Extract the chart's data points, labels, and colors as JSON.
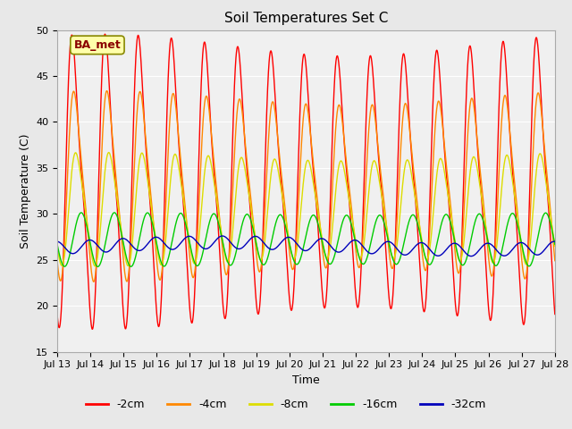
{
  "title": "Soil Temperatures Set C",
  "xlabel": "Time",
  "ylabel": "Soil Temperature (C)",
  "ylim": [
    15,
    50
  ],
  "n_days": 15,
  "x_tick_labels": [
    "Jul 13",
    "Jul 14",
    "Jul 15",
    "Jul 16",
    "Jul 17",
    "Jul 18",
    "Jul 19",
    "Jul 20",
    "Jul 21",
    "Jul 22",
    "Jul 23",
    "Jul 24",
    "Jul 25",
    "Jul 26",
    "Jul 27",
    "Jul 28"
  ],
  "background_color": "#e8e8e8",
  "plot_bg_color": "#f0f0f0",
  "grid_color": "#ffffff",
  "series": [
    {
      "label": "-2cm",
      "color": "#ff0000"
    },
    {
      "label": "-4cm",
      "color": "#ff8800"
    },
    {
      "label": "-8cm",
      "color": "#dddd00"
    },
    {
      "label": "-16cm",
      "color": "#00cc00"
    },
    {
      "label": "-32cm",
      "color": "#0000bb"
    }
  ],
  "annotation_text": "BA_met",
  "title_fontsize": 11,
  "label_fontsize": 9,
  "tick_fontsize": 8
}
